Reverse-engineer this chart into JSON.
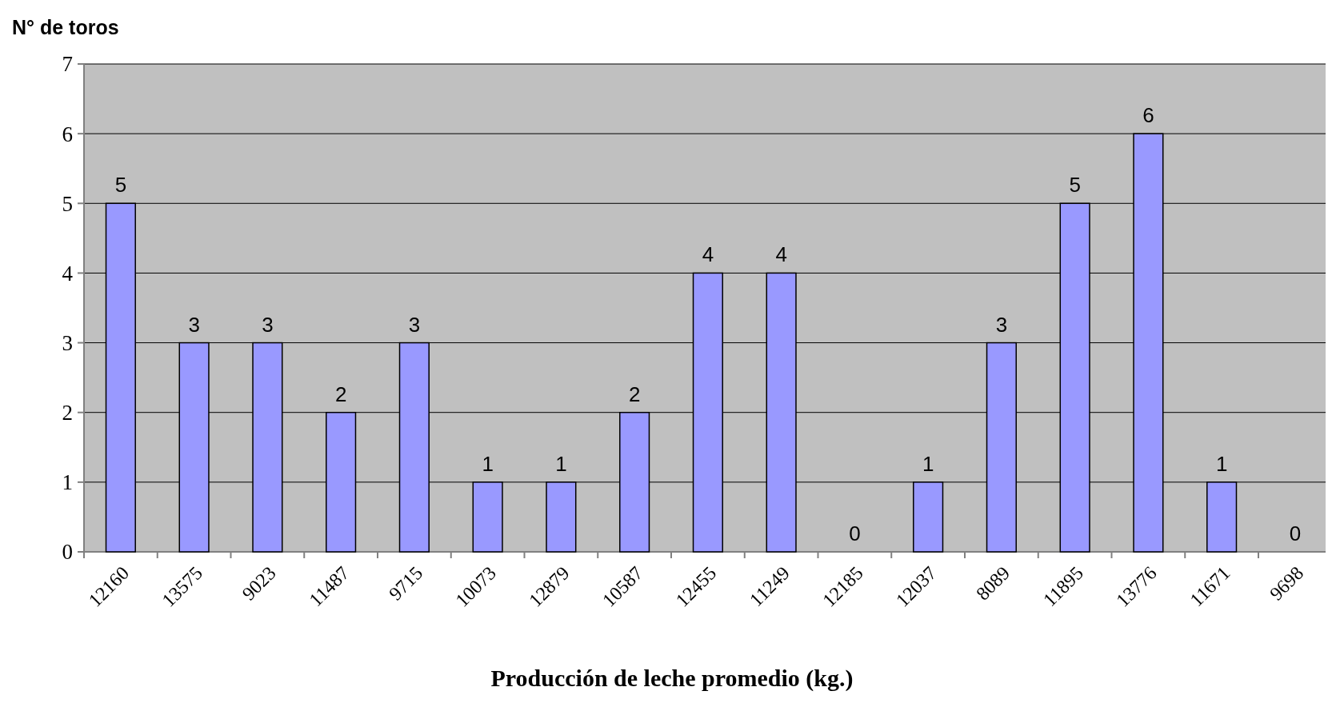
{
  "chart_data": {
    "type": "bar",
    "ylabel": "N° de toros",
    "xlabel": "Producción de leche promedio (kg.)",
    "categories": [
      "12160",
      "13575",
      "9023",
      "11487",
      "9715",
      "10073",
      "12879",
      "10587",
      "12455",
      "11249",
      "12185",
      "12037",
      "8089",
      "11895",
      "13776",
      "11671",
      "9698"
    ],
    "values": [
      5,
      3,
      3,
      2,
      3,
      1,
      1,
      2,
      4,
      4,
      0,
      1,
      3,
      5,
      6,
      1,
      0
    ],
    "color": "#9999ff",
    "ylim": [
      0,
      7
    ],
    "yticks": [
      0,
      1,
      2,
      3,
      4,
      5,
      6,
      7
    ],
    "grid": "y",
    "data_labels": true
  }
}
